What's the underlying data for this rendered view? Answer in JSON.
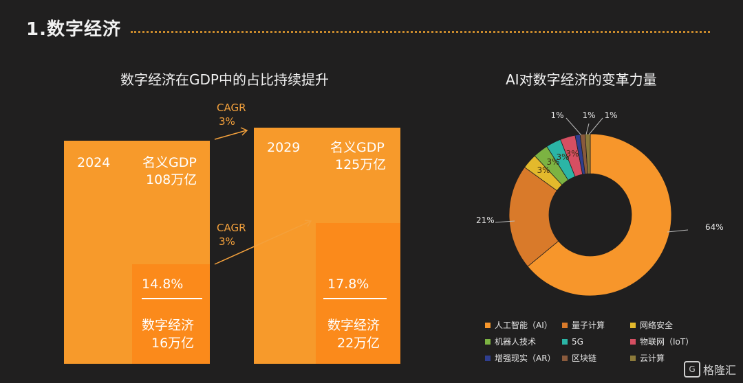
{
  "header": {
    "title": "1.数字经济"
  },
  "left_chart": {
    "title": "数字经济在GDP中的占比持续提升",
    "bars": [
      {
        "year": "2024",
        "gdp_label": "名义GDP",
        "gdp_value": "108万亿",
        "share": "14.8%",
        "digital_label": "数字经济",
        "digital_value": "16万亿"
      },
      {
        "year": "2029",
        "gdp_label": "名义GDP",
        "gdp_value": "125万亿",
        "share": "17.8%",
        "digital_label": "数字经济",
        "digital_value": "22万亿"
      }
    ],
    "cagr_top": {
      "label": "CAGR",
      "value": "3%"
    },
    "cagr_bottom": {
      "label": "CAGR",
      "value": "3%"
    }
  },
  "chart_data": {
    "type": "pie",
    "title": "AI对数字经济的变革力量",
    "donut": true,
    "categories": [
      "人工智能（AI）",
      "量子计算",
      "网络安全",
      "机器人技术",
      "5G",
      "物联网（IoT）",
      "增强现实（AR）",
      "区块链",
      "云计算"
    ],
    "values": [
      64,
      21,
      3,
      3,
      3,
      3,
      1,
      1,
      1
    ],
    "data_labels": [
      "64%",
      "21%",
      "3%",
      "3%",
      "3%",
      "3%",
      "1%",
      "1%",
      "1%"
    ],
    "colors": [
      "#f7962b",
      "#d97a2a",
      "#e3b92c",
      "#7cb342",
      "#2bb5a6",
      "#d64f62",
      "#2f3e8f",
      "#8a5a3c",
      "#8c7a3a"
    ],
    "legend_position": "bottom"
  },
  "watermark": {
    "text": "格隆汇",
    "logo": "G"
  }
}
